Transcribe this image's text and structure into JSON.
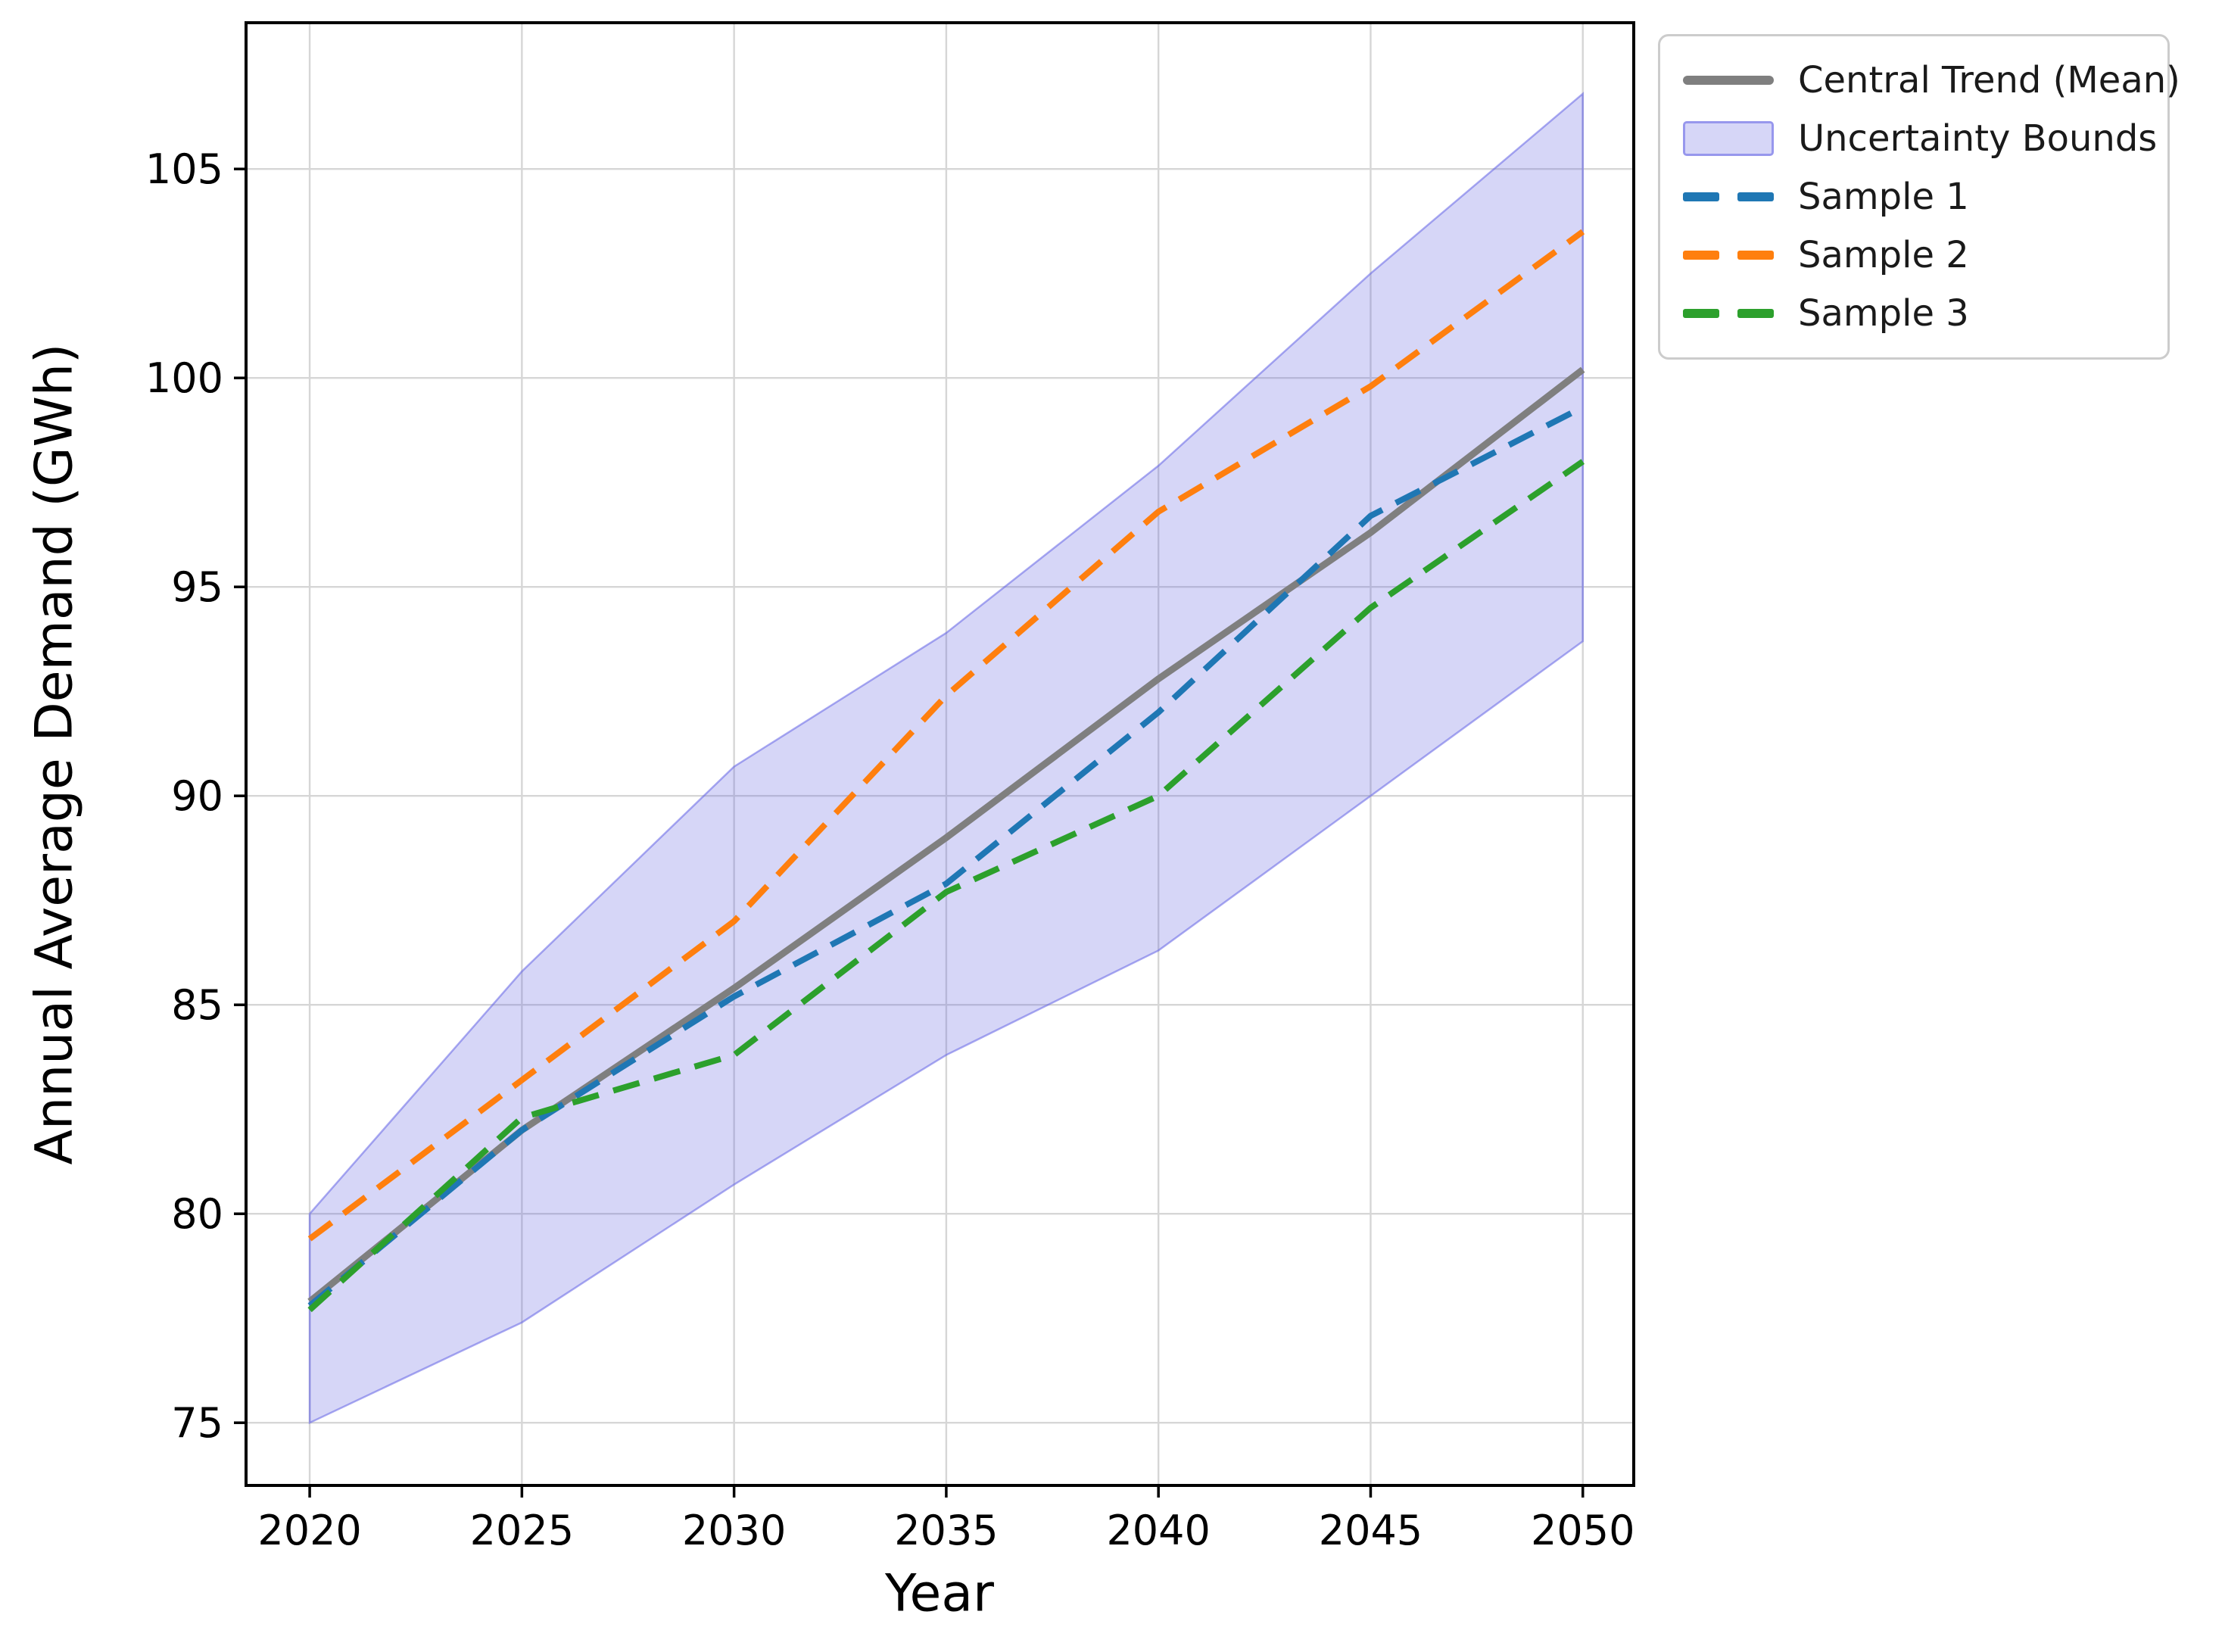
{
  "figure": {
    "background_color": "#ffffff"
  },
  "chart_data": {
    "type": "line",
    "title": "",
    "xlabel": "Year",
    "ylabel": "Annual Average Demand (GWh)",
    "x": [
      2020,
      2025,
      2030,
      2035,
      2040,
      2045,
      2050
    ],
    "xticks": [
      "2020",
      "2025",
      "2030",
      "2035",
      "2040",
      "2045",
      "2050"
    ],
    "yticks": [
      "75",
      "80",
      "85",
      "90",
      "95",
      "100",
      "105"
    ],
    "xlim": [
      2018.5,
      2051.2
    ],
    "ylim": [
      73.5,
      108.5
    ],
    "grid": true,
    "grid_color": "#d6d6d6",
    "legend_position": "outside upper right",
    "band": {
      "label": "Uncertainty Bounds",
      "upper": [
        80.0,
        85.8,
        90.7,
        93.9,
        97.9,
        102.5,
        106.8
      ],
      "lower": [
        75.0,
        77.4,
        80.7,
        83.8,
        86.3,
        90.0,
        93.7
      ],
      "fill_color": "rgba(90,90,224,0.25)",
      "edge_color": "rgba(100,100,230,0.55)"
    },
    "series": [
      {
        "name": "Central Trend (Mean)",
        "color": "#7f7f7f",
        "style": "solid",
        "values": [
          77.9,
          82.0,
          85.4,
          89.0,
          92.8,
          96.3,
          100.2
        ]
      },
      {
        "name": "Sample 1",
        "color": "#1f77b4",
        "style": "dashed",
        "values": [
          77.8,
          82.0,
          85.2,
          87.9,
          92.0,
          96.7,
          99.3
        ]
      },
      {
        "name": "Sample 2",
        "color": "#ff7f0e",
        "style": "dashed",
        "values": [
          79.4,
          83.2,
          87.0,
          92.4,
          96.8,
          99.8,
          103.5
        ]
      },
      {
        "name": "Sample 3",
        "color": "#2ca02c",
        "style": "dashed",
        "values": [
          77.7,
          82.3,
          83.8,
          87.7,
          90.0,
          94.5,
          98.0
        ]
      }
    ]
  },
  "legend": {
    "items": [
      {
        "label": "Central Trend (Mean)",
        "swatch": "solid-line",
        "color": "#7f7f7f"
      },
      {
        "label": "Uncertainty Bounds",
        "swatch": "filled-band",
        "color": "rgba(90,90,224,0.25)"
      },
      {
        "label": "Sample 1",
        "swatch": "dashed-line",
        "color": "#1f77b4"
      },
      {
        "label": "Sample 2",
        "swatch": "dashed-line",
        "color": "#ff7f0e"
      },
      {
        "label": "Sample 3",
        "swatch": "dashed-line",
        "color": "#2ca02c"
      }
    ]
  }
}
